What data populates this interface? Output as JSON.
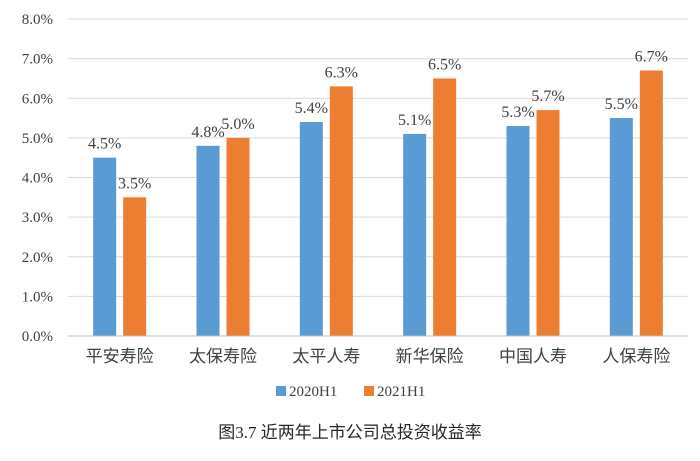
{
  "chart_data": {
    "type": "bar",
    "categories": [
      "平安寿险",
      "太保寿险",
      "太平人寿",
      "新华保险",
      "中国人寿",
      "人保寿险"
    ],
    "series": [
      {
        "name": "2020H1",
        "values": [
          4.5,
          4.8,
          5.4,
          5.1,
          5.3,
          5.5
        ],
        "labels": [
          "4.5%",
          "4.8%",
          "5.4%",
          "5.1%",
          "5.3%",
          "5.5%"
        ],
        "color": "#5b9bd5"
      },
      {
        "name": "2021H1",
        "values": [
          3.5,
          5.0,
          6.3,
          6.5,
          5.7,
          6.7
        ],
        "labels": [
          "3.5%",
          "5.0%",
          "6.3%",
          "6.5%",
          "5.7%",
          "6.7%"
        ],
        "color": "#ed7d31"
      }
    ],
    "ylim": [
      0,
      8
    ],
    "yticks": [
      "0.0%",
      "1.0%",
      "2.0%",
      "3.0%",
      "4.0%",
      "5.0%",
      "6.0%",
      "7.0%",
      "8.0%"
    ],
    "grid": true,
    "legend_position": "bottom",
    "caption": "图3.7  近两年上市公司总投资收益率"
  }
}
